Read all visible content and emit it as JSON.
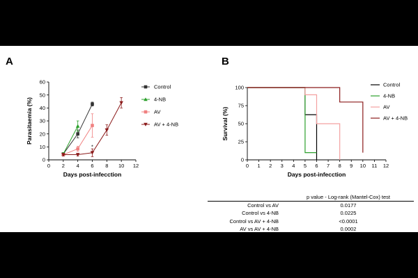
{
  "panels": {
    "a": "A",
    "b": "B"
  },
  "chart_data": [
    {
      "type": "line",
      "panel": "A",
      "xlabel": "Days post-infecction",
      "ylabel": "Parasitaemia (%)",
      "xlim": [
        0,
        12
      ],
      "ylim": [
        0,
        60
      ],
      "xticks": [
        0,
        2,
        4,
        6,
        8,
        10,
        12
      ],
      "yticks": [
        0,
        10,
        20,
        30,
        40,
        50,
        60
      ],
      "legend_position": "right",
      "series": [
        {
          "name": "Control",
          "color": "#333333",
          "marker": "square",
          "x": [
            2,
            4,
            6
          ],
          "y": [
            4.5,
            20,
            43
          ],
          "err": [
            1,
            3,
            1.5
          ]
        },
        {
          "name": "4-NB",
          "color": "#2ca02c",
          "marker": "triangle-up",
          "x": [
            2,
            4
          ],
          "y": [
            4.5,
            26
          ],
          "err": [
            1,
            4
          ]
        },
        {
          "name": "AV",
          "color": "#f08080",
          "marker": "square",
          "x": [
            2,
            4,
            6
          ],
          "y": [
            4,
            8.5,
            26.5
          ],
          "err": [
            1,
            2,
            9
          ]
        },
        {
          "name": "AV + 4-NB",
          "color": "#8b1a1a",
          "marker": "triangle-down",
          "x": [
            2,
            4,
            6,
            8,
            10
          ],
          "y": [
            4,
            4,
            5.5,
            23,
            44
          ],
          "err": [
            1,
            1,
            3,
            4,
            4
          ]
        }
      ],
      "annotations": [
        {
          "text": "*",
          "x": 6,
          "y": 10
        }
      ]
    },
    {
      "type": "line",
      "subtype": "step",
      "panel": "B",
      "xlabel": "Days post-infecction",
      "ylabel": "Survival (%)",
      "xlim": [
        0,
        12
      ],
      "ylim": [
        0,
        100
      ],
      "xticks": [
        0,
        1,
        2,
        3,
        4,
        5,
        6,
        7,
        8,
        9,
        10,
        11,
        12
      ],
      "yticks": [
        0,
        25,
        50,
        75,
        100
      ],
      "legend_position": "right",
      "series": [
        {
          "name": "Control",
          "color": "#000000",
          "x": [
            0,
            5,
            5,
            6,
            6
          ],
          "y": [
            100,
            100,
            62.5,
            62.5,
            0
          ]
        },
        {
          "name": "4-NB",
          "color": "#2ca02c",
          "x": [
            0,
            5,
            5,
            6
          ],
          "y": [
            100,
            100,
            10,
            10
          ]
        },
        {
          "name": "AV",
          "color": "#f4a0a0",
          "x": [
            0,
            5,
            5,
            6,
            6,
            8,
            8
          ],
          "y": [
            100,
            100,
            90,
            90,
            50,
            50,
            0
          ]
        },
        {
          "name": "AV + 4-NB",
          "color": "#8b1a1a",
          "x": [
            0,
            8,
            8,
            10,
            10
          ],
          "y": [
            100,
            100,
            80,
            80,
            10
          ]
        }
      ]
    }
  ],
  "table": {
    "header": "p value - Log-rank (Mantel-Cox) test",
    "rows": [
      {
        "label": "Control vs AV",
        "value": "0.0177"
      },
      {
        "label": "Control vs 4-NB",
        "value": "0.0225"
      },
      {
        "label": "Control vs AV + 4-NB",
        "value": "<0.0001"
      },
      {
        "label": "AV vs AV + 4-NB",
        "value": "0.0002"
      }
    ]
  }
}
